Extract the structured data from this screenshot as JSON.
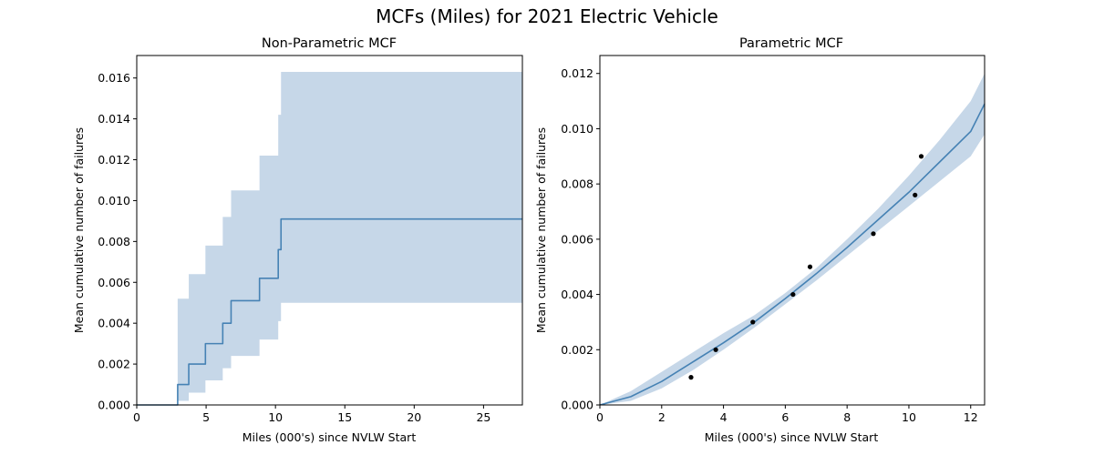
{
  "figure": {
    "suptitle": "MCFs (Miles) for 2021 Electric Vehicle",
    "line_color": "#4682b4",
    "band_color": "#c6d7e8",
    "point_color": "#000000"
  },
  "chart_data": [
    {
      "type": "line",
      "subtype": "step",
      "title": "Non-Parametric MCF",
      "xlabel": "Miles (000's) since NVLW Start",
      "ylabel": "Mean cumulative number of failures",
      "xlim": [
        0,
        27.8
      ],
      "ylim": [
        0,
        0.0171
      ],
      "xticks": [
        0,
        5,
        10,
        15,
        20,
        25
      ],
      "xtick_labels": [
        "0",
        "5",
        "10",
        "15",
        "20",
        "25"
      ],
      "yticks": [
        0,
        0.002,
        0.004,
        0.006,
        0.008,
        0.01,
        0.012,
        0.014,
        0.016
      ],
      "ytick_labels": [
        "0.000",
        "0.002",
        "0.004",
        "0.006",
        "0.008",
        "0.010",
        "0.012",
        "0.014",
        "0.016"
      ],
      "grid": false,
      "series": [
        {
          "kind": "step",
          "x": [
            0,
            2.95,
            3.75,
            4.95,
            6.2,
            6.8,
            8.85,
            10.2,
            10.4,
            27.8
          ],
          "y": [
            0,
            0.001,
            0.002,
            0.003,
            0.004,
            0.0051,
            0.0062,
            0.0076,
            0.0091,
            0.0091
          ]
        },
        {
          "kind": "confidence_band",
          "x": [
            0,
            2.95,
            3.75,
            4.95,
            6.2,
            6.8,
            8.85,
            10.2,
            10.4,
            27.8
          ],
          "lower": [
            0,
            0.0002,
            0.0006,
            0.0012,
            0.0018,
            0.0024,
            0.0032,
            0.0041,
            0.005,
            0.005
          ],
          "upper": [
            0,
            0.0052,
            0.0064,
            0.0078,
            0.0092,
            0.0105,
            0.0122,
            0.0142,
            0.0163,
            0.0163
          ]
        }
      ]
    },
    {
      "type": "line",
      "title": "Parametric MCF",
      "xlabel": "Miles (000's) since NVLW Start",
      "ylabel": "Mean cumulative number of failures",
      "xlim": [
        0,
        12.45
      ],
      "ylim": [
        0,
        0.01265
      ],
      "xticks": [
        0,
        2,
        4,
        6,
        8,
        10,
        12
      ],
      "xtick_labels": [
        "0",
        "2",
        "4",
        "6",
        "8",
        "10",
        "12"
      ],
      "yticks": [
        0,
        0.002,
        0.004,
        0.006,
        0.008,
        0.01,
        0.012
      ],
      "ytick_labels": [
        "0.000",
        "0.002",
        "0.004",
        "0.006",
        "0.008",
        "0.010",
        "0.012"
      ],
      "grid": false,
      "series": [
        {
          "kind": "fitted_curve",
          "x": [
            0,
            1,
            2,
            3,
            4,
            5,
            6,
            7,
            8,
            9,
            10,
            11,
            12,
            12.45
          ],
          "y": [
            0,
            0.0003,
            0.00085,
            0.00155,
            0.00225,
            0.003,
            0.00385,
            0.00475,
            0.0057,
            0.0067,
            0.0077,
            0.0088,
            0.0099,
            0.0109
          ]
        },
        {
          "kind": "confidence_band",
          "x": [
            0,
            1,
            2,
            3,
            4,
            5,
            6,
            7,
            8,
            9,
            10,
            11,
            12,
            12.45
          ],
          "lower": [
            0,
            0.00015,
            0.0006,
            0.00125,
            0.002,
            0.0028,
            0.00365,
            0.0045,
            0.0054,
            0.0063,
            0.0072,
            0.0081,
            0.009,
            0.0098
          ],
          "upper": [
            0,
            0.0005,
            0.0012,
            0.0019,
            0.0026,
            0.00325,
            0.00405,
            0.00495,
            0.006,
            0.0071,
            0.0083,
            0.0096,
            0.011,
            0.012
          ]
        },
        {
          "kind": "scatter",
          "x": [
            2.95,
            3.75,
            4.95,
            6.25,
            6.8,
            8.85,
            10.2,
            10.4
          ],
          "y": [
            0.001,
            0.002,
            0.003,
            0.004,
            0.005,
            0.0062,
            0.0076,
            0.009
          ]
        }
      ]
    }
  ]
}
